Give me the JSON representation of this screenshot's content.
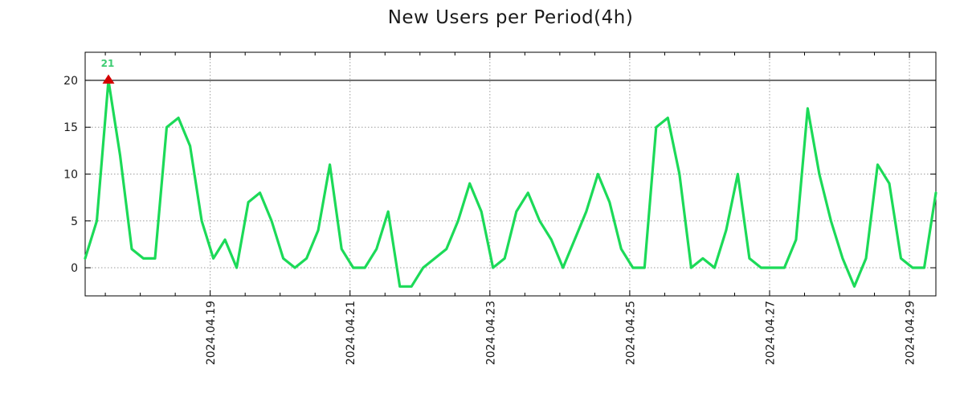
{
  "title": "New Users per Period(4h)",
  "colors": {
    "background": "#ffffff",
    "line": "#1cda58",
    "annotation_text": "#3dcc72",
    "clipped_marker": "#d40000",
    "axis": "#000000",
    "grid": "#9e9e9e",
    "text": "#1a1a1a",
    "cap_line": "#000000"
  },
  "chart_data": {
    "type": "line",
    "title": "New Users per Period(4h)",
    "xlabel": "",
    "ylabel": "",
    "period": "4h",
    "values": [
      1,
      5,
      21,
      12,
      2,
      1,
      1,
      15,
      16,
      13,
      5,
      1,
      3,
      0,
      7,
      8,
      5,
      1,
      0,
      1,
      4,
      11,
      2,
      0,
      0,
      2,
      6,
      -2,
      -2,
      0,
      1,
      2,
      5,
      9,
      6,
      0,
      1,
      6,
      8,
      5,
      3,
      0,
      3,
      6,
      10,
      7,
      2,
      0,
      0,
      15,
      16,
      10,
      0,
      1,
      0,
      4,
      10,
      1,
      0,
      0,
      0,
      3,
      17,
      10,
      5,
      1,
      -2,
      1,
      11,
      9,
      1,
      0,
      0,
      8
    ],
    "y_ticks": [
      0,
      5,
      10,
      15,
      20
    ],
    "ylim": [
      -3,
      23
    ],
    "clip_level": 20,
    "grid": true,
    "legend": false,
    "x_tick_labels": [
      "2024.04.19",
      "2024.04.21",
      "2024.04.23",
      "2024.04.25",
      "2024.04.27",
      "2024.04.29"
    ],
    "x_major_first_index": 10.73,
    "x_major_index_step": 12,
    "x_minor_first_index": 1.73,
    "x_minor_index_step": 3,
    "annotation": {
      "text": "21",
      "index": 2,
      "value": 21,
      "marker": "red-triangle"
    }
  }
}
